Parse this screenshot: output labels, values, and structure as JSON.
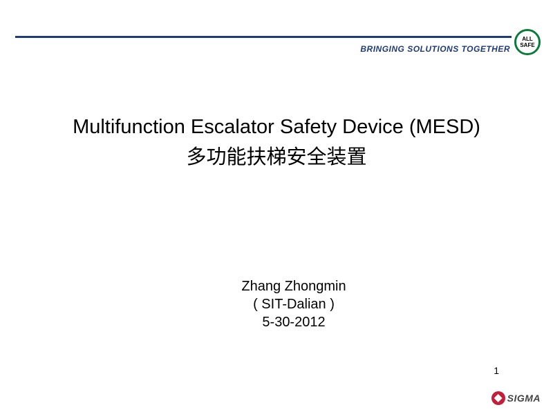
{
  "header": {
    "tagline": "BRINGING SOLUTIONS TOGETHER",
    "badge_line1": "ALL",
    "badge_line2": "SAFE",
    "line_color": "#1f3a7a",
    "badge_border_color": "#0a7a3a"
  },
  "title": {
    "english": "Multifunction Escalator Safety Device (MESD)",
    "chinese": "多功能扶梯安全装置"
  },
  "author": {
    "name": "Zhang Zhongmin",
    "org": "( SIT-Dalian )",
    "date": "5-30-2012"
  },
  "footer": {
    "page_number": "1",
    "logo_text": "SIGMA",
    "logo_color": "#c41e3a"
  }
}
